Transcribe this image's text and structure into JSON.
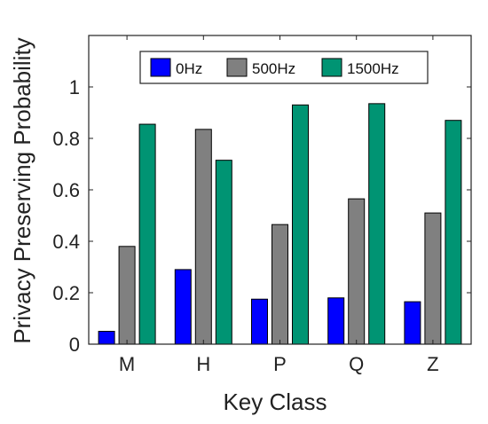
{
  "chart_data": {
    "type": "bar",
    "categories": [
      "M",
      "H",
      "P",
      "Q",
      "Z"
    ],
    "series": [
      {
        "name": "0Hz",
        "color": "#0000ff",
        "values": [
          0.05,
          0.29,
          0.175,
          0.18,
          0.165
        ]
      },
      {
        "name": "500Hz",
        "color": "#808080",
        "values": [
          0.38,
          0.835,
          0.465,
          0.565,
          0.51
        ]
      },
      {
        "name": "1500Hz",
        "color": "#009473",
        "values": [
          0.855,
          0.715,
          0.93,
          0.935,
          0.87
        ]
      }
    ],
    "xlabel": "Key Class",
    "ylabel": "Privacy Preserving Probability",
    "ylim": [
      0,
      1.2
    ],
    "yticks": [
      0,
      0.2,
      0.4,
      0.6,
      0.8,
      1
    ],
    "ytick_labels": [
      "0",
      "0.2",
      "0.4",
      "0.6",
      "0.8",
      "1"
    ],
    "grid": false,
    "legend_position": "top"
  }
}
